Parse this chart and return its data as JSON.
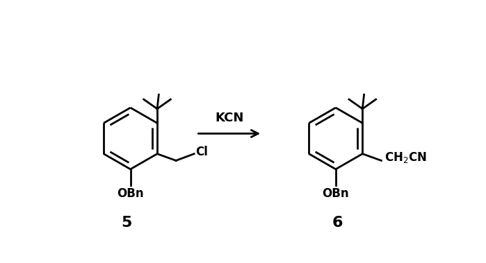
{
  "background_color": "#ffffff",
  "line_color": "#000000",
  "lw": 2.0,
  "fig_width": 6.99,
  "fig_height": 3.79,
  "dpi": 100,
  "reagent_text": "KCN",
  "compound5_label": "5",
  "compound6_label": "6"
}
